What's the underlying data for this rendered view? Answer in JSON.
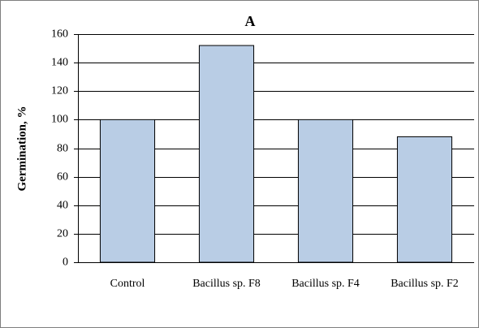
{
  "chart_data": {
    "type": "bar",
    "title": "A",
    "y_label": "Germination, %",
    "categories": [
      "Control",
      "Bacillus sp. F8",
      "Bacillus sp. F4",
      "Bacillus sp. F2"
    ],
    "values": [
      100,
      152,
      100,
      88
    ],
    "color": "#b9cde5",
    "ylim": [
      0,
      160
    ],
    "yticks": [
      0,
      20,
      40,
      60,
      80,
      100,
      120,
      140,
      160
    ],
    "grid": true
  }
}
